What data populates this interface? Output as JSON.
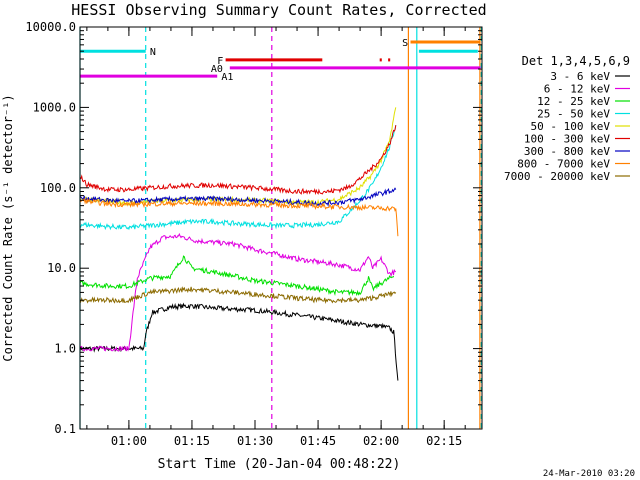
{
  "chart_data": {
    "type": "line",
    "title": "HESSI Observing Summary Count Rates, Corrected",
    "xlabel": "Start Time (20-Jan-04 00:48:22)",
    "ylabel": "Corrected Count Rate (s⁻¹ detector⁻¹)",
    "yscale": "log",
    "ylim": [
      0.1,
      10000.0
    ],
    "xlim": [
      "00:48:22",
      "02:24:00"
    ],
    "x_ticks": [
      "01:00",
      "01:15",
      "01:30",
      "01:45",
      "02:00",
      "02:15"
    ],
    "y_ticks": [
      "0.1",
      "1.0",
      "10.0",
      "100.0",
      "1000.0",
      "10000.0"
    ],
    "footer": "24-Mar-2010 03:20",
    "legend": {
      "position": "right",
      "title": "Det 1,3,4,5,6,9",
      "entries": [
        {
          "label": "3 - 6 keV",
          "color": "#000000"
        },
        {
          "label": "6 - 12 keV",
          "color": "#e000e0"
        },
        {
          "label": "12 - 25 keV",
          "color": "#00e000"
        },
        {
          "label": "25 - 50 keV",
          "color": "#00e0e0"
        },
        {
          "label": "50 - 100 keV",
          "color": "#e0e000"
        },
        {
          "label": "100 - 300 keV",
          "color": "#e00000"
        },
        {
          "label": "300 - 800 keV",
          "color": "#0000c0"
        },
        {
          "label": "800 - 7000 keV",
          "color": "#ff8000"
        },
        {
          "label": "7000 - 20000 keV",
          "color": "#8b6a00"
        }
      ]
    },
    "series": [
      {
        "name": "3 - 6 keV",
        "color": "#000000",
        "points": [
          [
            "00:48:22",
            1.0
          ],
          [
            "01:03:30",
            1.0
          ],
          [
            "01:04:00",
            1.5
          ],
          [
            "01:05:30",
            2.8
          ],
          [
            "01:10:00",
            3.3
          ],
          [
            "01:15:00",
            3.4
          ],
          [
            "01:20:00",
            3.2
          ],
          [
            "01:25:00",
            3.1
          ],
          [
            "01:30:00",
            3.0
          ],
          [
            "01:35:00",
            2.8
          ],
          [
            "01:40:00",
            2.6
          ],
          [
            "01:45:00",
            2.4
          ],
          [
            "01:50:00",
            2.2
          ],
          [
            "01:55:00",
            2.0
          ],
          [
            "02:00:00",
            1.9
          ],
          [
            "02:02:00",
            1.8
          ],
          [
            "02:03:00",
            1.6
          ],
          [
            "02:04:00",
            0.4
          ]
        ]
      },
      {
        "name": "6 - 12 keV",
        "color": "#e000e0",
        "points": [
          [
            "00:48:22",
            1.0
          ],
          [
            "01:00:00",
            1.0
          ],
          [
            "01:01:00",
            2.8
          ],
          [
            "01:02:00",
            7.5
          ],
          [
            "01:05:00",
            18.0
          ],
          [
            "01:08:00",
            24.0
          ],
          [
            "01:12:00",
            25.0
          ],
          [
            "01:16:00",
            22.0
          ],
          [
            "01:20:00",
            21.0
          ],
          [
            "01:25:00",
            20.0
          ],
          [
            "01:30:00",
            17.0
          ],
          [
            "01:35:00",
            15.0
          ],
          [
            "01:40:00",
            13.0
          ],
          [
            "01:45:00",
            12.0
          ],
          [
            "01:50:00",
            11.0
          ],
          [
            "01:55:00",
            9.5
          ],
          [
            "01:57:00",
            14.0
          ],
          [
            "01:58:00",
            10.0
          ],
          [
            "02:00:00",
            13.0
          ],
          [
            "02:02:00",
            8.5
          ],
          [
            "02:03:30",
            9.0
          ]
        ]
      },
      {
        "name": "12 - 25 keV",
        "color": "#00e000",
        "points": [
          [
            "00:48:22",
            6.5
          ],
          [
            "00:55:00",
            6.0
          ],
          [
            "01:00:00",
            6.0
          ],
          [
            "01:05:00",
            7.5
          ],
          [
            "01:10:00",
            8.0
          ],
          [
            "01:13:00",
            14.0
          ],
          [
            "01:15:00",
            10.0
          ],
          [
            "01:20:00",
            9.0
          ],
          [
            "01:25:00",
            8.0
          ],
          [
            "01:30:00",
            7.0
          ],
          [
            "01:35:00",
            6.5
          ],
          [
            "01:40:00",
            6.0
          ],
          [
            "01:45:00",
            5.5
          ],
          [
            "01:50:00",
            5.0
          ],
          [
            "01:55:00",
            5.0
          ],
          [
            "01:57:00",
            7.5
          ],
          [
            "01:58:00",
            5.5
          ],
          [
            "02:00:00",
            6.5
          ],
          [
            "02:03:00",
            8.0
          ]
        ]
      },
      {
        "name": "25 - 50 keV",
        "color": "#00e0e0",
        "points": [
          [
            "00:48:22",
            35.0
          ],
          [
            "00:55:00",
            33.0
          ],
          [
            "01:00:00",
            32.0
          ],
          [
            "01:05:00",
            34.0
          ],
          [
            "01:10:00",
            36.0
          ],
          [
            "01:15:00",
            38.0
          ],
          [
            "01:20:00",
            38.0
          ],
          [
            "01:25:00",
            36.0
          ],
          [
            "01:30:00",
            35.0
          ],
          [
            "01:35:00",
            34.0
          ],
          [
            "01:40:00",
            34.0
          ],
          [
            "01:45:00",
            35.0
          ],
          [
            "01:50:00",
            38.0
          ],
          [
            "01:52:00",
            48.0
          ],
          [
            "01:55:00",
            70.0
          ],
          [
            "01:58:00",
            110.0
          ],
          [
            "02:00:00",
            180.0
          ],
          [
            "02:02:00",
            320.0
          ],
          [
            "02:03:30",
            600.0
          ]
        ]
      },
      {
        "name": "50 - 100 keV",
        "color": "#e0e000",
        "points": [
          [
            "00:48:22",
            75.0
          ],
          [
            "00:55:00",
            68.0
          ],
          [
            "01:00:00",
            65.0
          ],
          [
            "01:10:00",
            70.0
          ],
          [
            "01:20:00",
            72.0
          ],
          [
            "01:30:00",
            70.0
          ],
          [
            "01:40:00",
            66.0
          ],
          [
            "01:45:00",
            66.0
          ],
          [
            "01:50:00",
            72.0
          ],
          [
            "01:55:00",
            100.0
          ],
          [
            "01:58:00",
            150.0
          ],
          [
            "02:00:00",
            220.0
          ],
          [
            "02:02:00",
            380.0
          ],
          [
            "02:03:30",
            1000.0
          ]
        ]
      },
      {
        "name": "100 - 300 keV",
        "color": "#e00000",
        "points": [
          [
            "00:48:22",
            140.0
          ],
          [
            "00:50:00",
            110.0
          ],
          [
            "00:55:00",
            95.0
          ],
          [
            "01:00:00",
            95.0
          ],
          [
            "01:10:00",
            105.0
          ],
          [
            "01:20:00",
            108.0
          ],
          [
            "01:30:00",
            100.0
          ],
          [
            "01:40:00",
            90.0
          ],
          [
            "01:48:00",
            90.0
          ],
          [
            "01:52:00",
            100.0
          ],
          [
            "01:55:00",
            130.0
          ],
          [
            "01:58:00",
            180.0
          ],
          [
            "02:00:00",
            230.0
          ],
          [
            "02:02:00",
            350.0
          ],
          [
            "02:03:30",
            600.0
          ]
        ]
      },
      {
        "name": "300 - 800 keV",
        "color": "#0000c0",
        "points": [
          [
            "00:48:22",
            75.0
          ],
          [
            "00:55:00",
            70.0
          ],
          [
            "01:00:00",
            68.0
          ],
          [
            "01:10:00",
            72.0
          ],
          [
            "01:20:00",
            73.0
          ],
          [
            "01:30:00",
            70.0
          ],
          [
            "01:40:00",
            66.0
          ],
          [
            "01:45:00",
            64.0
          ],
          [
            "01:50:00",
            66.0
          ],
          [
            "01:55:00",
            72.0
          ],
          [
            "02:00:00",
            85.0
          ],
          [
            "02:03:30",
            95.0
          ]
        ]
      },
      {
        "name": "800 - 7000 keV",
        "color": "#ff8000",
        "points": [
          [
            "00:48:22",
            70.0
          ],
          [
            "00:55:00",
            63.0
          ],
          [
            "01:00:00",
            62.0
          ],
          [
            "01:10:00",
            64.0
          ],
          [
            "01:20:00",
            64.0
          ],
          [
            "01:30:00",
            62.0
          ],
          [
            "01:40:00",
            60.0
          ],
          [
            "01:50:00",
            58.0
          ],
          [
            "02:00:00",
            56.0
          ],
          [
            "02:03:30",
            55.0
          ],
          [
            "02:04:00",
            25.0
          ]
        ]
      },
      {
        "name": "7000 - 20000 keV",
        "color": "#8b6a00",
        "points": [
          [
            "00:48:22",
            4.0
          ],
          [
            "01:00:00",
            4.0
          ],
          [
            "01:05:00",
            5.0
          ],
          [
            "01:15:00",
            5.5
          ],
          [
            "01:25:00",
            5.0
          ],
          [
            "01:35:00",
            4.5
          ],
          [
            "01:45:00",
            4.0
          ],
          [
            "01:50:00",
            4.0
          ],
          [
            "01:55:00",
            4.0
          ],
          [
            "02:00:00",
            4.5
          ],
          [
            "02:03:30",
            5.0
          ]
        ]
      }
    ],
    "annotations": {
      "vertical_lines": [
        {
          "t": "00:48:22",
          "color": "#00e0e0",
          "dashed": false
        },
        {
          "t": "01:04:00",
          "color": "#00e0e0",
          "dashed": true
        },
        {
          "t": "01:34:00",
          "color": "#e000e0",
          "dashed": true
        },
        {
          "t": "02:06:30",
          "color": "#ff8000",
          "dashed": false
        },
        {
          "t": "02:08:30",
          "color": "#00e0e0",
          "dashed": false
        },
        {
          "t": "02:23:30",
          "color": "#ff8000",
          "dashed": false
        },
        {
          "t": "02:23:50",
          "color": "#00e0e0",
          "dashed": true
        }
      ],
      "flag_bars": [
        {
          "label": "N",
          "color": "#00e0e0",
          "y": 5000.0,
          "segments": [
            [
              "00:48:22",
              "01:04:00"
            ],
            [
              "02:09:00",
              "02:23:00"
            ]
          ],
          "label_at": "01:05:00"
        },
        {
          "label": "S",
          "color": "#ff8000",
          "y": 6500.0,
          "segments": [
            [
              "02:07:00",
              "02:23:40"
            ]
          ],
          "label_at": "02:05:00"
        },
        {
          "label": "F",
          "color": "#e00000",
          "y": 3900.0,
          "segments": [
            [
              "01:23:00",
              "01:46:00"
            ],
            [
              "01:59:40",
              "02:00:10"
            ],
            [
              "02:01:40",
              "02:02:10"
            ]
          ],
          "label_at": "01:21:00"
        },
        {
          "label": "A0",
          "color": "#e000e0",
          "y": 3100.0,
          "segments": [
            [
              "01:24:00",
              "02:23:40"
            ]
          ],
          "label_at": "01:19:30"
        },
        {
          "label": "A1",
          "color": "#e000e0",
          "y": 2450.0,
          "segments": [
            [
              "00:48:22",
              "01:21:00"
            ]
          ],
          "label_at": "01:22:00"
        }
      ]
    }
  }
}
